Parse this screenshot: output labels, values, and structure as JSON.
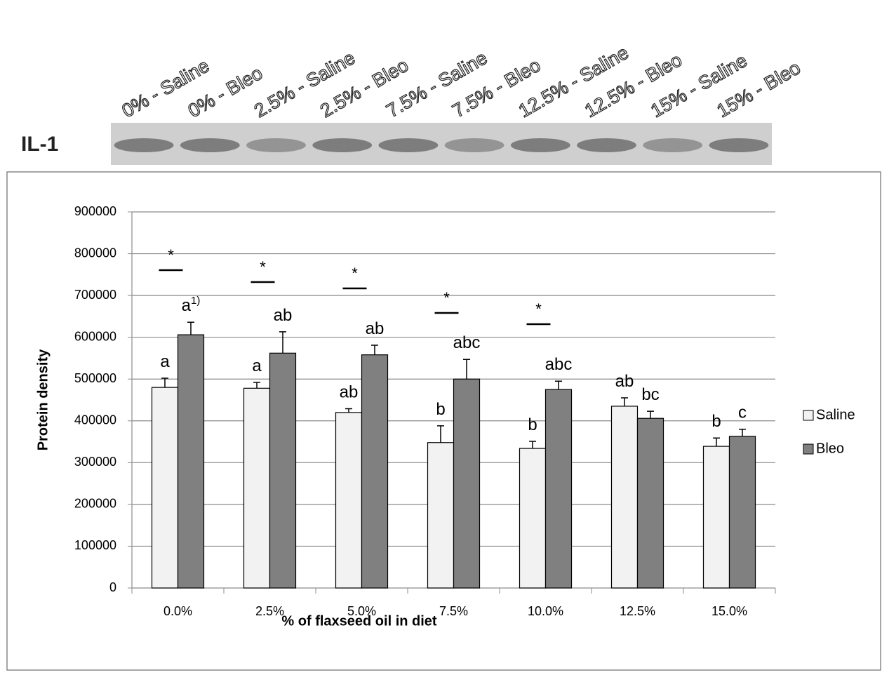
{
  "blot": {
    "label": "IL-1",
    "lanes": [
      "0% - Saline",
      "0% - Bleo",
      "2.5% - Saline",
      "2.5% - Bleo",
      "7.5% - Saline",
      "7.5% - Bleo",
      "12.5% - Saline",
      "12.5% - Bleo",
      "15% - Saline",
      "15% - Bleo"
    ]
  },
  "chart_data": {
    "type": "bar",
    "x_label": "% of flaxseed oil in diet",
    "y_label": "Protein density",
    "categories": [
      "0.0%",
      "2.5%",
      "5.0%",
      "7.5%",
      "10.0%",
      "12.5%",
      "15.0%"
    ],
    "series": [
      {
        "name": "Saline",
        "color": "#f2f2f2",
        "values": [
          480000,
          478000,
          420000,
          348000,
          334000,
          435000,
          339000
        ],
        "errors": [
          22000,
          14000,
          9000,
          40000,
          17000,
          20000,
          20000
        ],
        "letters": [
          "a",
          "a",
          "ab",
          "b",
          "b",
          "ab",
          "b"
        ]
      },
      {
        "name": "Bleo",
        "color": "#808080",
        "values": [
          606000,
          562000,
          558000,
          500000,
          475000,
          406000,
          363000
        ],
        "errors": [
          30000,
          51000,
          23000,
          47000,
          20000,
          17000,
          17000
        ],
        "letters": [
          "a",
          "ab",
          "ab",
          "abc",
          "abc",
          "bc",
          "c"
        ]
      }
    ],
    "footnote_mark": "1)",
    "significance": [
      "*",
      "*",
      "*",
      "*",
      "*"
    ],
    "ylim": [
      0,
      900000
    ],
    "yticks": [
      0,
      100000,
      200000,
      300000,
      400000,
      500000,
      600000,
      700000,
      800000,
      900000
    ],
    "grid": true,
    "legend": "right"
  }
}
